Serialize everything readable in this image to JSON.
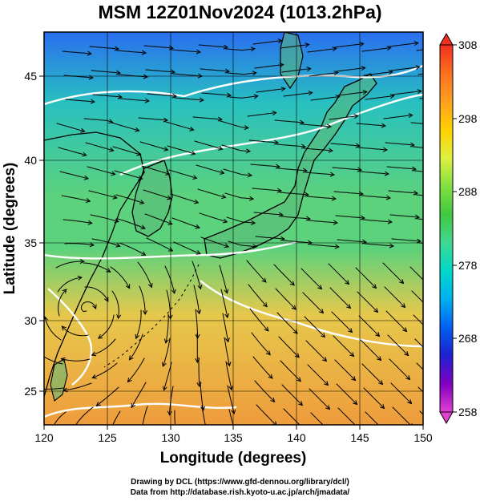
{
  "title": "MSM 12Z01Nov2024 (1013.2hPa)",
  "x_axis": {
    "label": "Longitude (degrees)",
    "ticks": [
      "120",
      "125",
      "130",
      "135",
      "140",
      "145",
      "150"
    ],
    "range": [
      120,
      150
    ]
  },
  "y_axis": {
    "label": "Latitude  (degrees)",
    "ticks": [
      "25",
      "30",
      "35",
      "40",
      "45"
    ],
    "range": [
      22.4,
      47.6
    ]
  },
  "colorbar": {
    "ticks": [
      "258",
      "268",
      "278",
      "288",
      "298",
      "308"
    ],
    "range": [
      258,
      308
    ],
    "colors": [
      "#e040d0",
      "#8000c0",
      "#2020d0",
      "#0060f0",
      "#00b0f0",
      "#00d8c8",
      "#40d890",
      "#40c840",
      "#80e040",
      "#e0f040",
      "#ffd000",
      "#ffa020",
      "#ff7020",
      "#f03020"
    ]
  },
  "field_colors": {
    "north": "#2a6ff0",
    "northeast": "#28c0c0",
    "middle": "#5cd27c",
    "south": "#e6c84c",
    "tropics": "#ef9c3c",
    "contour": "#ffffff",
    "coast": "#000000"
  },
  "footer": {
    "line1": "Drawing by DCL (https://www.gfd-dennou.org/library/dcl/)",
    "line2": "Data from http://database.rish.kyoto-u.ac.jp/arch/jmadata/"
  }
}
